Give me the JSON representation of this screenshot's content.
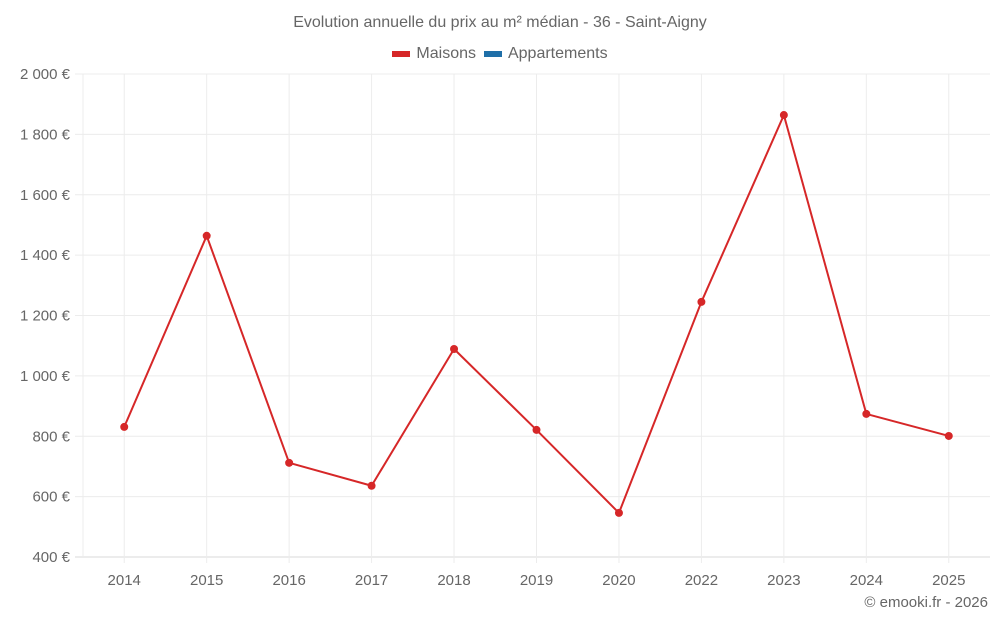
{
  "title": "Evolution annuelle du prix au m² médian - 36 - Saint-Aigny",
  "legend": [
    {
      "label": "Maisons",
      "color": "#d62728"
    },
    {
      "label": "Appartements",
      "color": "#1f6fa8"
    }
  ],
  "credit": "© emooki.fr - 2026",
  "chart_data": {
    "type": "line",
    "title": "Evolution annuelle du prix au m² médian - 36 - Saint-Aigny",
    "xlabel": "",
    "ylabel": "",
    "categories": [
      "2014",
      "2015",
      "2016",
      "2017",
      "2018",
      "2019",
      "2020",
      "2022",
      "2023",
      "2024",
      "2025"
    ],
    "series": [
      {
        "name": "Maisons",
        "color": "#d62728",
        "values": [
          831,
          1464,
          712,
          636,
          1089,
          821,
          546,
          1245,
          1864,
          874,
          801
        ]
      },
      {
        "name": "Appartements",
        "color": "#1f6fa8",
        "values": []
      }
    ],
    "ylim": [
      400,
      2000
    ],
    "yticks": [
      400,
      600,
      800,
      1000,
      1200,
      1400,
      1600,
      1800,
      2000
    ],
    "ytick_labels": [
      "400 €",
      "600 €",
      "800 €",
      "1 000 €",
      "1 200 €",
      "1 400 €",
      "1 600 €",
      "1 800 €",
      "2 000 €"
    ],
    "grid": true,
    "legend_position": "top"
  }
}
